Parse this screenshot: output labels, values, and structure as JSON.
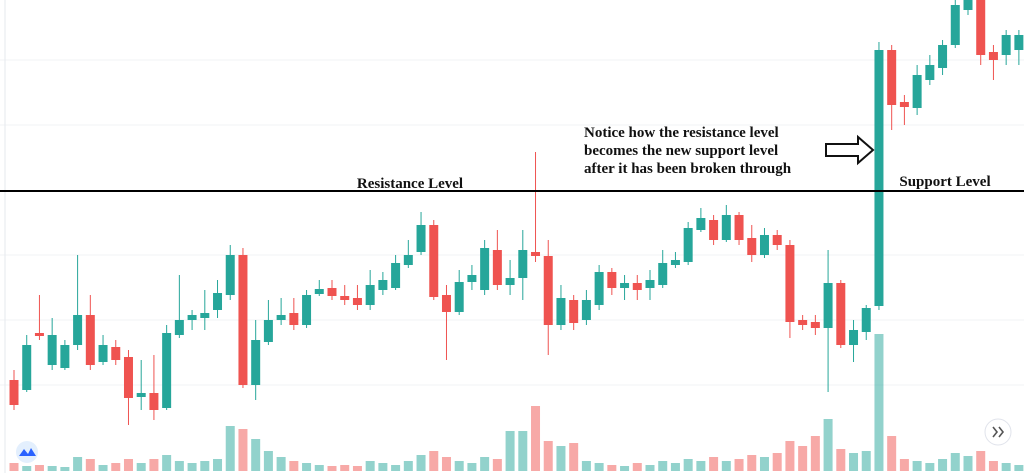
{
  "chart_data": {
    "type": "candlestick",
    "open": [
      93,
      83,
      140,
      108,
      105,
      128,
      158,
      111,
      126,
      116,
      76,
      80,
      65,
      138,
      153,
      155,
      163,
      178,
      218,
      88,
      131,
      153,
      160,
      148,
      179,
      185,
      177,
      175,
      168,
      183,
      185,
      208,
      221,
      248,
      178,
      161,
      191,
      183,
      223,
      188,
      195,
      221,
      217,
      148,
      173,
      153,
      168,
      201,
      185,
      190,
      185,
      188,
      208,
      211,
      243,
      253,
      233,
      258,
      235,
      218,
      238,
      228,
      153,
      151,
      145,
      190,
      128,
      141,
      167,
      423,
      371,
      365,
      393,
      405,
      428,
      463,
      473,
      421,
      418,
      423
    ],
    "high": [
      103,
      138,
      178,
      155,
      133,
      218,
      178,
      138,
      133,
      123,
      113,
      118,
      148,
      198,
      163,
      183,
      193,
      228,
      225,
      153,
      173,
      175,
      175,
      183,
      193,
      193,
      188,
      188,
      203,
      201,
      218,
      233,
      261,
      253,
      188,
      203,
      208,
      233,
      243,
      213,
      243,
      321,
      233,
      188,
      178,
      183,
      208,
      205,
      198,
      198,
      203,
      223,
      221,
      251,
      265,
      258,
      268,
      261,
      248,
      245,
      243,
      233,
      158,
      158,
      223,
      193,
      153,
      168,
      431,
      428,
      378,
      408,
      418,
      433,
      473,
      473,
      473,
      428,
      443,
      443
    ],
    "low": [
      63,
      81,
      133,
      103,
      103,
      123,
      103,
      108,
      108,
      48,
      63,
      53,
      63,
      135,
      143,
      143,
      155,
      173,
      85,
      73,
      128,
      148,
      143,
      145,
      177,
      173,
      168,
      163,
      163,
      178,
      183,
      205,
      218,
      173,
      113,
      158,
      183,
      178,
      183,
      178,
      173,
      211,
      118,
      143,
      143,
      148,
      163,
      178,
      173,
      173,
      173,
      185,
      205,
      208,
      241,
      228,
      231,
      228,
      211,
      215,
      223,
      135,
      143,
      138,
      81,
      125,
      111,
      133,
      163,
      343,
      348,
      358,
      388,
      398,
      425,
      458,
      408,
      393,
      408,
      408
    ],
    "close": [
      68,
      128,
      137,
      138,
      128,
      158,
      108,
      128,
      113,
      75,
      80,
      63,
      140,
      153,
      158,
      160,
      180,
      218,
      88,
      133,
      153,
      158,
      148,
      178,
      184,
      177,
      173,
      168,
      188,
      193,
      210,
      218,
      248,
      176,
      161,
      191,
      198,
      225,
      188,
      195,
      223,
      217,
      148,
      175,
      150,
      173,
      201,
      185,
      190,
      183,
      193,
      210,
      213,
      245,
      255,
      233,
      258,
      233,
      218,
      238,
      228,
      151,
      148,
      145,
      190,
      128,
      143,
      165,
      423,
      368,
      366,
      398,
      408,
      428,
      468,
      473,
      418,
      413,
      438,
      438
    ],
    "volume": [
      8,
      5,
      6,
      5,
      4,
      14,
      12,
      6,
      8,
      12,
      8,
      12,
      16,
      10,
      8,
      10,
      12,
      45,
      42,
      32,
      20,
      14,
      10,
      8,
      6,
      5,
      6,
      5,
      10,
      8,
      6,
      10,
      16,
      20,
      14,
      10,
      8,
      14,
      12,
      40,
      40,
      65,
      30,
      25,
      28,
      10,
      8,
      6,
      5,
      8,
      6,
      10,
      8,
      12,
      10,
      14,
      10,
      12,
      16,
      14,
      18,
      30,
      25,
      35,
      52,
      22,
      18,
      20,
      137,
      35,
      12,
      10,
      8,
      12,
      18,
      15,
      20,
      10,
      8,
      6
    ],
    "up_color": "#26a69a",
    "down_color": "#ef5350",
    "ylim": [
      0,
      473
    ],
    "y2lim": [
      0,
      473
    ],
    "level": 282,
    "level_labels": [
      "Resistance Level",
      "Support Level"
    ],
    "annotation": [
      "Notice how the resistance level",
      "becomes the new support level",
      "after it has been broken through"
    ]
  }
}
